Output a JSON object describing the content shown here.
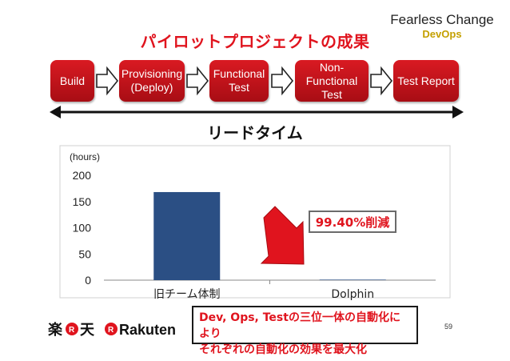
{
  "slide": {
    "title": "パイロットプロジェクトの成果",
    "logo": {
      "line1": "Fearless Change",
      "line2": "DevOps"
    },
    "pipeline": [
      {
        "label": "Build"
      },
      {
        "label": "Provisioning\n(Deploy)"
      },
      {
        "label": "Functional\nTest"
      },
      {
        "label": "Non-Functional\nTest"
      },
      {
        "label": "Test Report"
      }
    ],
    "leadtime_label": "リードタイム",
    "reduction_badge": "99.40%削減",
    "callout": {
      "line1": "Dev, Ops, Testの三位一体の自動化により",
      "line2": "それぞれの自動化の効果を最大化"
    },
    "rakuten_logo": {
      "kanji": "楽天",
      "latin": "Rakuten"
    },
    "page_number": "59",
    "colors": {
      "accent": "#e0141e",
      "bar": "#2b4f84",
      "arrow_red": "#e0141e"
    }
  },
  "chart_data": {
    "type": "bar",
    "categories": [
      "旧チーム体制",
      "Dolphin"
    ],
    "values": [
      168,
      1
    ],
    "ylabel": "(hours)",
    "ylim": [
      0,
      200
    ],
    "yticks": [
      0,
      50,
      100,
      150,
      200
    ],
    "grid": false,
    "legend": "none"
  }
}
